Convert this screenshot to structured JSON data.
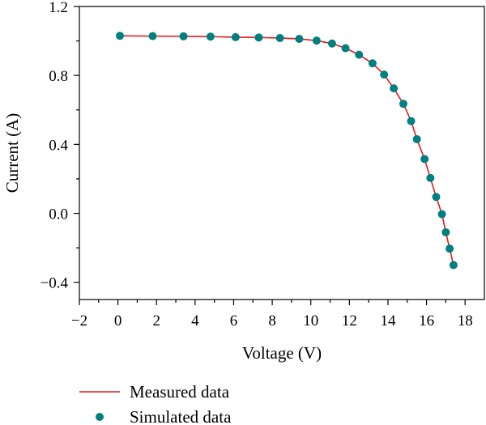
{
  "chart_data": {
    "type": "scatter",
    "xlabel": "Voltage (V)",
    "ylabel": "Current (A)",
    "xlim": [
      -2,
      19
    ],
    "ylim": [
      -0.5,
      1.2
    ],
    "xticks": [
      -2,
      0,
      2,
      4,
      6,
      8,
      10,
      12,
      14,
      16,
      18
    ],
    "xtick_labels": [
      "−2",
      "0",
      "2",
      "4",
      "6",
      "8",
      "10",
      "12",
      "14",
      "16",
      "18"
    ],
    "yticks": [
      -0.4,
      0.0,
      0.4,
      0.8,
      1.2
    ],
    "ytick_labels": [
      "−0.4",
      "0.0",
      "0.4",
      "0.8",
      "1.2"
    ],
    "legend_position": "bottom-left, below plot",
    "series": [
      {
        "name": "Measured data",
        "kind": "line",
        "color": "#e41a1c",
        "x": [
          0.1,
          1.8,
          3.4,
          4.8,
          6.1,
          7.3,
          8.4,
          9.4,
          10.3,
          11.1,
          11.8,
          12.5,
          13.2,
          13.8,
          14.3,
          14.8,
          15.2,
          15.5,
          15.9,
          16.2,
          16.5,
          16.8,
          17.0,
          17.2,
          17.4
        ],
        "y": [
          1.03,
          1.028,
          1.027,
          1.025,
          1.022,
          1.02,
          1.017,
          1.012,
          1.002,
          0.985,
          0.958,
          0.92,
          0.87,
          0.805,
          0.725,
          0.635,
          0.535,
          0.43,
          0.315,
          0.205,
          0.095,
          -0.005,
          -0.11,
          -0.205,
          -0.3
        ]
      },
      {
        "name": "Simulated data",
        "kind": "scatter",
        "color": "#008080",
        "x": [
          0.1,
          1.8,
          3.4,
          4.8,
          6.1,
          7.3,
          8.4,
          9.4,
          10.3,
          11.1,
          11.8,
          12.5,
          13.2,
          13.8,
          14.3,
          14.8,
          15.2,
          15.5,
          15.9,
          16.2,
          16.5,
          16.8,
          17.0,
          17.2,
          17.4
        ],
        "y": [
          1.03,
          1.028,
          1.027,
          1.025,
          1.022,
          1.02,
          1.017,
          1.012,
          1.002,
          0.985,
          0.958,
          0.92,
          0.87,
          0.805,
          0.725,
          0.635,
          0.535,
          0.43,
          0.315,
          0.205,
          0.095,
          -0.005,
          -0.11,
          -0.205,
          -0.3
        ]
      }
    ]
  }
}
